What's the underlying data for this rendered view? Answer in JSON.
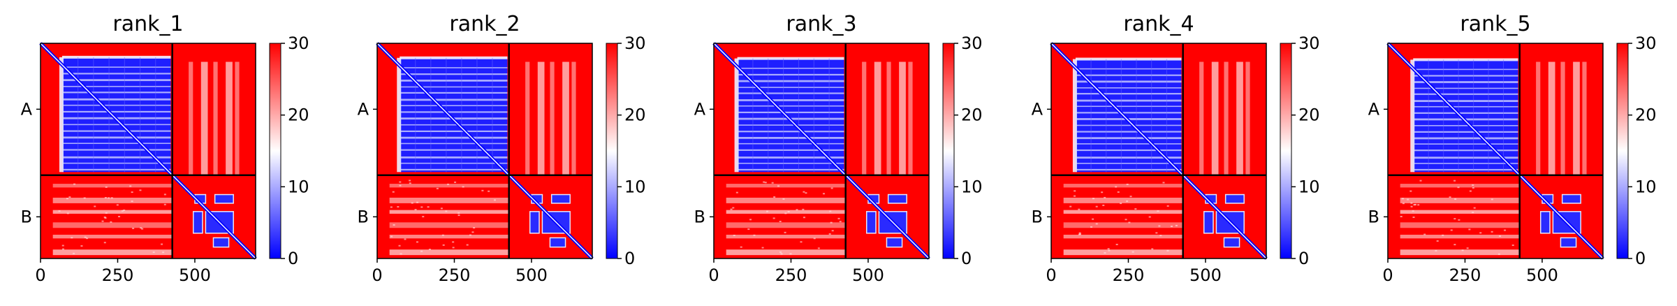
{
  "figure": {
    "panel_titles": [
      "rank_1",
      "rank_2",
      "rank_3",
      "rank_4",
      "rank_5"
    ]
  },
  "chart_data": {
    "type": "heatmap",
    "panels": [
      "rank_1",
      "rank_2",
      "rank_3",
      "rank_4",
      "rank_5"
    ],
    "matrix_size": 697,
    "chain_boundary": 427,
    "chains": [
      {
        "label": "A",
        "start": 0,
        "end": 427
      },
      {
        "label": "B",
        "start": 427,
        "end": 697
      }
    ],
    "x_ticks": [
      0,
      250,
      500
    ],
    "colorbar": {
      "ticks": [
        0,
        10,
        20,
        30
      ],
      "range": [
        0,
        30
      ],
      "colormap": "bwr"
    },
    "colors": {
      "low": "#0000ff",
      "mid": "#ffffff",
      "high": "#ff0000"
    },
    "grid": false,
    "legend": "colorbar-right"
  }
}
